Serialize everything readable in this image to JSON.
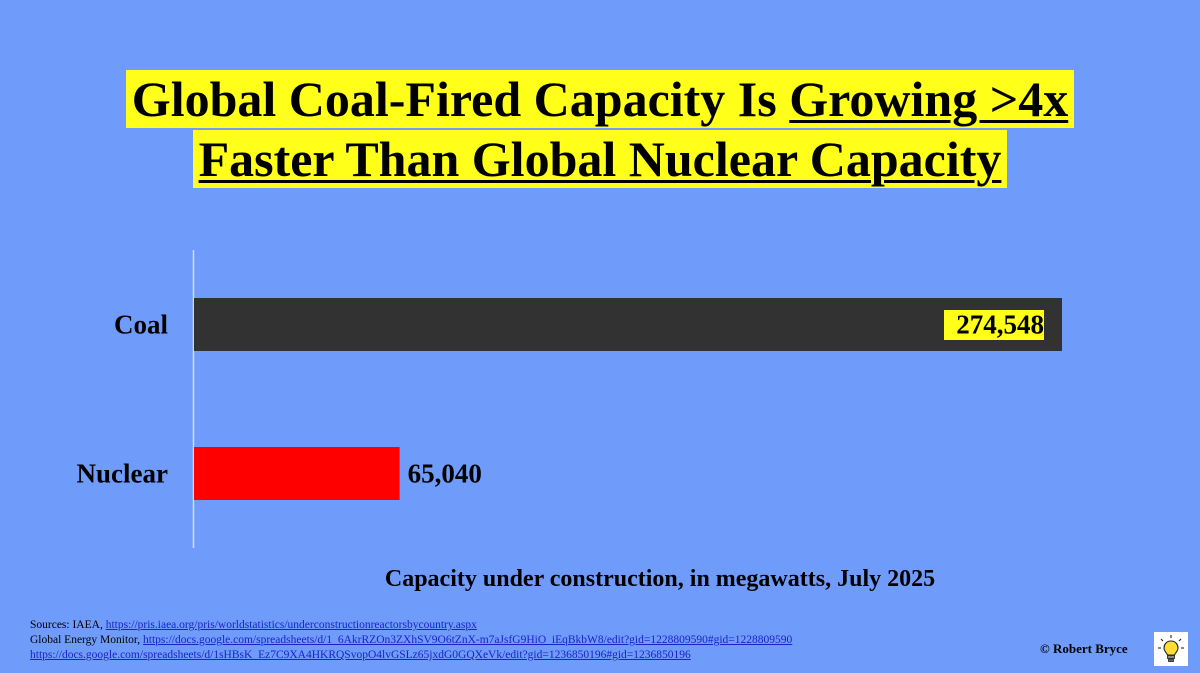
{
  "title": {
    "line1_pre": "Global Coal-Fired Capacity Is ",
    "line1_underlined": "Growing >4x",
    "line2": "Faster Than Global Nuclear Capacity"
  },
  "chart_data": {
    "type": "bar",
    "orientation": "horizontal",
    "categories": [
      "Coal",
      "Nuclear"
    ],
    "values": [
      274548,
      65040
    ],
    "value_labels": [
      "274,548",
      "65,040"
    ],
    "colors": [
      "#323232",
      "#ff0000"
    ],
    "xlabel": "Capacity under construction, in megawatts, July 2025",
    "ylabel": "",
    "xlim": [
      0,
      274548
    ],
    "grid": false,
    "legend": "none"
  },
  "sources": {
    "line1_prefix": "Sources: IAEA, ",
    "line1_link": "https://pris.iaea.org/pris/worldstatistics/underconstructionreactorsbycountry.aspx",
    "line2_prefix": "Global Energy Monitor, ",
    "line2_link": "https://docs.google.com/spreadsheets/d/1_6AkrRZOn3ZXhSV9O6tZnX-m7aJsfG9HiO_iEqBkbW8/edit?gid=1228809590#gid=1228809590",
    "line3_link": "https://docs.google.com/spreadsheets/d/1sHBsK_Ez7C9XA4HKRQSvopO4lvGSLz65jxdG0GQXeVk/edit?gid=1236850196#gid=1236850196"
  },
  "credit": "© Robert Bryce",
  "icons": {
    "logo": "lightbulb-icon"
  }
}
